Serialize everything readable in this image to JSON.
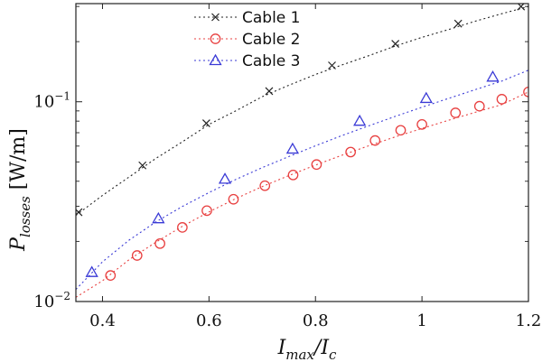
{
  "chart_data": {
    "type": "line",
    "title": "",
    "xlabel": {
      "main": "I",
      "sub1": "max",
      "slash": "/I",
      "sub2": "c"
    },
    "ylabel": {
      "main": "P",
      "sub": "losses",
      "unit": " [W/m]"
    },
    "xlim": [
      0.35,
      1.2
    ],
    "ylim": [
      0.01,
      0.31
    ],
    "yscale": "log",
    "grid": false,
    "legend_position": "top",
    "xticks": [
      0.4,
      0.6,
      0.8,
      1.0,
      1.2
    ],
    "xtick_labels": [
      "0.4",
      "0.6",
      "0.8",
      "1",
      "1.2"
    ],
    "yticks": [
      {
        "value": 0.01,
        "base": "10",
        "exp": "−2"
      },
      {
        "value": 0.1,
        "base": "10",
        "exp": "−1"
      }
    ],
    "series": [
      {
        "name": "Cable 1",
        "color": "#222222",
        "marker": "x",
        "dash": "2,3",
        "curve_x": [
          0.35,
          0.4,
          0.45,
          0.5,
          0.55,
          0.6,
          0.65,
          0.7,
          0.75,
          0.8,
          0.85,
          0.9,
          0.95,
          1.0,
          1.05,
          1.1,
          1.15,
          1.2
        ],
        "curve_y": [
          0.027,
          0.034,
          0.042,
          0.052,
          0.063,
          0.077,
          0.09,
          0.106,
          0.121,
          0.137,
          0.153,
          0.17,
          0.19,
          0.21,
          0.23,
          0.253,
          0.276,
          0.3
        ],
        "marker_x": [
          0.355,
          0.475,
          0.595,
          0.713,
          0.831,
          0.95,
          1.068,
          1.186
        ],
        "marker_y": [
          0.028,
          0.048,
          0.078,
          0.113,
          0.152,
          0.195,
          0.246,
          0.3
        ]
      },
      {
        "name": "Cable 2",
        "color": "#e84040",
        "marker": "circle",
        "dash": "2,3",
        "curve_x": [
          0.35,
          0.4,
          0.45,
          0.5,
          0.55,
          0.6,
          0.65,
          0.7,
          0.75,
          0.8,
          0.85,
          0.9,
          0.95,
          1.0,
          1.05,
          1.1,
          1.15,
          1.2
        ],
        "curve_y": [
          0.0105,
          0.0127,
          0.0162,
          0.0198,
          0.0238,
          0.0281,
          0.0327,
          0.0376,
          0.0427,
          0.0482,
          0.054,
          0.0602,
          0.0667,
          0.0735,
          0.0808,
          0.0886,
          0.0968,
          0.112
        ],
        "marker_x": [
          0.415,
          0.465,
          0.508,
          0.55,
          0.596,
          0.646,
          0.705,
          0.758,
          0.802,
          0.866,
          0.912,
          0.96,
          1.0,
          1.063,
          1.108,
          1.15,
          1.2
        ],
        "marker_y": [
          0.0135,
          0.017,
          0.0195,
          0.0235,
          0.0285,
          0.0325,
          0.038,
          0.043,
          0.0485,
          0.056,
          0.064,
          0.072,
          0.077,
          0.088,
          0.095,
          0.103,
          0.112
        ]
      },
      {
        "name": "Cable 3",
        "color": "#3a3ad6",
        "marker": "triangle",
        "dash": "2,3",
        "curve_x": [
          0.35,
          0.4,
          0.45,
          0.5,
          0.55,
          0.6,
          0.65,
          0.7,
          0.75,
          0.8,
          0.85,
          0.9,
          0.95,
          1.0,
          1.05,
          1.1,
          1.15,
          1.2
        ],
        "curve_y": [
          0.0115,
          0.0158,
          0.0203,
          0.025,
          0.0299,
          0.0351,
          0.0408,
          0.0468,
          0.0532,
          0.0602,
          0.0678,
          0.0758,
          0.0845,
          0.0939,
          0.104,
          0.115,
          0.127,
          0.144
        ],
        "marker_x": [
          0.38,
          0.505,
          0.63,
          0.757,
          0.883,
          1.008,
          1.133
        ],
        "marker_y": [
          0.014,
          0.026,
          0.041,
          0.058,
          0.08,
          0.104,
          0.133
        ]
      }
    ]
  }
}
